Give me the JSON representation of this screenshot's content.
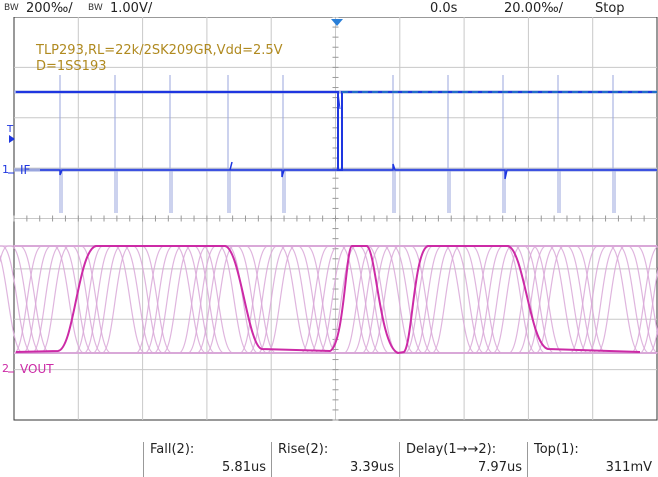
{
  "header": {
    "ch1_bw": "BW",
    "ch1_scale": "200‰/",
    "ch2_bw": "BW",
    "ch2_scale": "1.00V/",
    "time_position": "0.0s",
    "time_scale": "20.00‰/",
    "run_state": "Stop"
  },
  "annotation": {
    "line1": "TLP293,RL=22k/2SK209GR,Vdd=2.5V",
    "line2": "D=1SS193"
  },
  "labels": {
    "ch1_number": "1",
    "ch1_name": "IF",
    "ch2_number": "2",
    "ch2_name": "VOUT",
    "trigger_marker": "T"
  },
  "measurements": [
    {
      "label": "Fall(2):",
      "value": "5.81us"
    },
    {
      "label": "Rise(2):",
      "value": "3.39us"
    },
    {
      "label": "Delay(1→→2):",
      "value": "7.97us"
    },
    {
      "label": "Top(1):",
      "value": "311mV"
    }
  ],
  "colors": {
    "ch1": "#1e36e0",
    "ch1_persist": "#9aa6de",
    "ch2": "#cc2aa6",
    "ch2_persist": "#d9a8d8",
    "annotation": "#b08a20",
    "grid": "#c8c8c8",
    "trigger_level": "#22aaaa"
  }
}
